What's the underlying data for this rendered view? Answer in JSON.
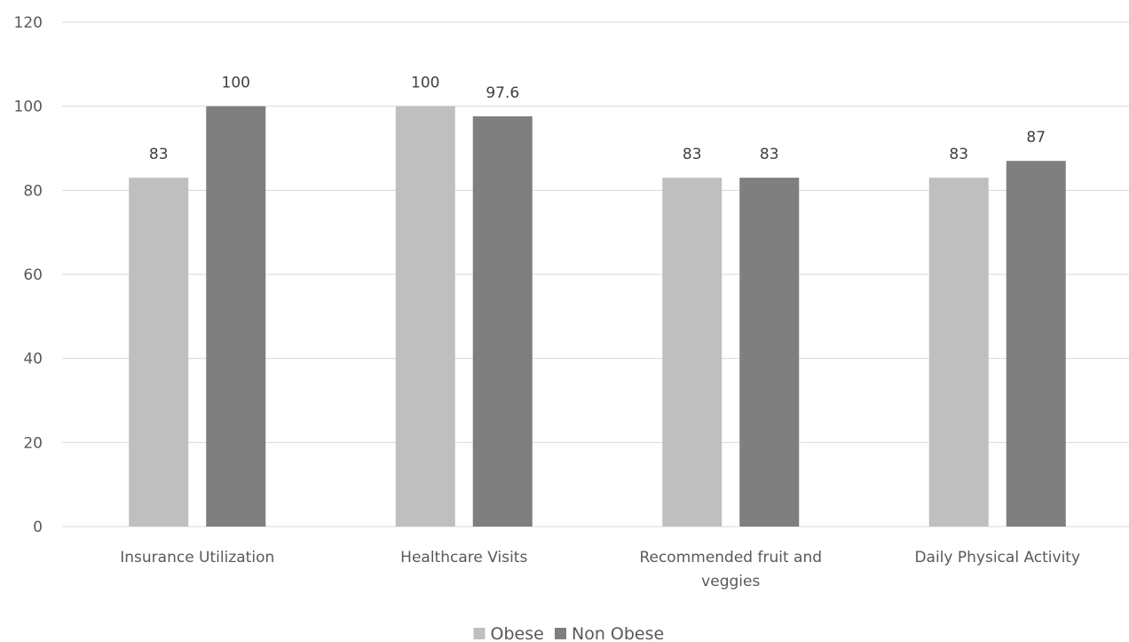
{
  "chart_data": {
    "type": "bar",
    "title": "",
    "xlabel": "",
    "ylabel": "",
    "ylim": [
      0,
      120
    ],
    "yticks": [
      0,
      20,
      40,
      60,
      80,
      100,
      120
    ],
    "grid": true,
    "legend_position": "bottom",
    "categories": [
      [
        "Insurance Utilization"
      ],
      [
        "Healthcare Visits"
      ],
      [
        "Recommended fruit and",
        "veggies"
      ],
      [
        "Daily Physical Activity"
      ]
    ],
    "series": [
      {
        "name": "Obese",
        "color": "#bfbfbf",
        "values": [
          83,
          100,
          83,
          83
        ],
        "labels": [
          "83",
          "100",
          "83",
          "83"
        ]
      },
      {
        "name": "Non Obese",
        "color": "#7f7f7f",
        "values": [
          100,
          97.6,
          83,
          87
        ],
        "labels": [
          "100",
          "97.6",
          "83",
          "87"
        ]
      }
    ]
  }
}
